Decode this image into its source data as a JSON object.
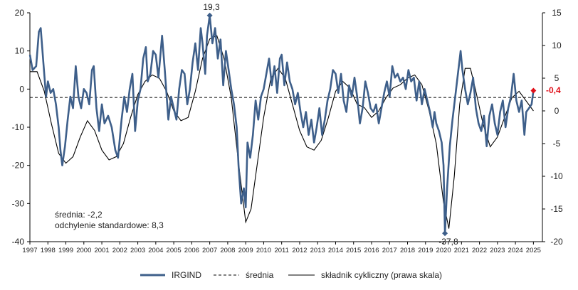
{
  "chart_data": {
    "type": "line",
    "x_start_year": 1997,
    "x_end_year": 2025,
    "x_tick_labels": [
      "1997",
      "1998",
      "1999",
      "2000",
      "2001",
      "2002",
      "2003",
      "2004",
      "2005",
      "2006",
      "2007",
      "2008",
      "2009",
      "2010",
      "2011",
      "2012",
      "2013",
      "2014",
      "2015",
      "2016",
      "2017",
      "2018",
      "2019",
      "2020",
      "2021",
      "2022",
      "2023",
      "2024",
      "2025"
    ],
    "left_axis": {
      "min": -40,
      "max": 20,
      "ticks": [
        20,
        10,
        0,
        -10,
        -20,
        -30,
        -40
      ],
      "tick_labels": [
        "20",
        "10",
        "0",
        "-10",
        "-20",
        "-30",
        "-40"
      ]
    },
    "right_axis": {
      "min": -20,
      "max": 15,
      "ticks": [
        15,
        10,
        5,
        0,
        -5,
        -10,
        -15,
        -20
      ],
      "tick_labels": [
        "15",
        "10",
        "5",
        "0",
        "-5",
        "-10",
        "-15",
        "-20"
      ]
    },
    "colors": {
      "irgind": "#3E5F8A",
      "mean": "#000000",
      "cycle": "#000000",
      "last_marker": "#E0101A"
    },
    "series": [
      {
        "name": "IRGIND",
        "axis": "left",
        "points": [
          [
            1997.0,
            9
          ],
          [
            1997.15,
            5
          ],
          [
            1997.35,
            6
          ],
          [
            1997.5,
            15
          ],
          [
            1997.6,
            16
          ],
          [
            1997.75,
            7
          ],
          [
            1997.9,
            -2
          ],
          [
            1998.0,
            2
          ],
          [
            1998.15,
            -1
          ],
          [
            1998.3,
            0
          ],
          [
            1998.45,
            -4
          ],
          [
            1998.6,
            -10
          ],
          [
            1998.7,
            -16
          ],
          [
            1998.8,
            -20
          ],
          [
            1998.95,
            -15
          ],
          [
            1999.1,
            -8
          ],
          [
            1999.25,
            -2
          ],
          [
            1999.4,
            -5
          ],
          [
            1999.55,
            6
          ],
          [
            1999.7,
            -2
          ],
          [
            1999.85,
            -5
          ],
          [
            2000.0,
            0
          ],
          [
            2000.15,
            -1
          ],
          [
            2000.3,
            -4
          ],
          [
            2000.45,
            5
          ],
          [
            2000.55,
            6
          ],
          [
            2000.7,
            -5
          ],
          [
            2000.85,
            -11
          ],
          [
            2001.0,
            -4
          ],
          [
            2001.15,
            -9
          ],
          [
            2001.35,
            -7
          ],
          [
            2001.55,
            -10
          ],
          [
            2001.75,
            -16
          ],
          [
            2001.9,
            -18
          ],
          [
            2002.1,
            -8
          ],
          [
            2002.25,
            -2
          ],
          [
            2002.4,
            -6
          ],
          [
            2002.55,
            0
          ],
          [
            2002.7,
            4
          ],
          [
            2002.85,
            -11
          ],
          [
            2003.0,
            -3
          ],
          [
            2003.15,
            0
          ],
          [
            2003.3,
            8
          ],
          [
            2003.45,
            11
          ],
          [
            2003.55,
            2
          ],
          [
            2003.7,
            4
          ],
          [
            2003.85,
            10
          ],
          [
            2004.0,
            9
          ],
          [
            2004.15,
            3
          ],
          [
            2004.35,
            14
          ],
          [
            2004.5,
            5
          ],
          [
            2004.7,
            -8
          ],
          [
            2004.85,
            -2
          ],
          [
            2005.0,
            -5
          ],
          [
            2005.15,
            -8
          ],
          [
            2005.3,
            0
          ],
          [
            2005.45,
            5
          ],
          [
            2005.6,
            4
          ],
          [
            2005.75,
            -4
          ],
          [
            2005.9,
            0
          ],
          [
            2006.05,
            7
          ],
          [
            2006.2,
            12
          ],
          [
            2006.35,
            5
          ],
          [
            2006.5,
            16
          ],
          [
            2006.6,
            12
          ],
          [
            2006.75,
            4
          ],
          [
            2006.85,
            14
          ],
          [
            2007.0,
            19.3
          ],
          [
            2007.15,
            12
          ],
          [
            2007.3,
            16
          ],
          [
            2007.45,
            8
          ],
          [
            2007.6,
            13
          ],
          [
            2007.75,
            1
          ],
          [
            2007.9,
            10
          ],
          [
            2008.05,
            5
          ],
          [
            2008.2,
            0
          ],
          [
            2008.35,
            -4
          ],
          [
            2008.5,
            -10
          ],
          [
            2008.6,
            -20
          ],
          [
            2008.75,
            -30
          ],
          [
            2008.9,
            -26
          ],
          [
            2009.0,
            -31
          ],
          [
            2009.1,
            -14
          ],
          [
            2009.25,
            -18
          ],
          [
            2009.4,
            -12
          ],
          [
            2009.55,
            -3
          ],
          [
            2009.7,
            -8
          ],
          [
            2009.85,
            -2
          ],
          [
            2010.0,
            0
          ],
          [
            2010.15,
            4
          ],
          [
            2010.3,
            8
          ],
          [
            2010.45,
            1
          ],
          [
            2010.6,
            6
          ],
          [
            2010.75,
            -1
          ],
          [
            2010.9,
            8
          ],
          [
            2011.0,
            9
          ],
          [
            2011.15,
            1
          ],
          [
            2011.3,
            7
          ],
          [
            2011.45,
            2
          ],
          [
            2011.6,
            0
          ],
          [
            2011.75,
            -4
          ],
          [
            2011.9,
            -1
          ],
          [
            2012.05,
            -6
          ],
          [
            2012.2,
            -10
          ],
          [
            2012.35,
            -6
          ],
          [
            2012.5,
            -12
          ],
          [
            2012.65,
            -8
          ],
          [
            2012.8,
            -14
          ],
          [
            2012.95,
            -10
          ],
          [
            2013.1,
            -5
          ],
          [
            2013.25,
            -12
          ],
          [
            2013.4,
            -8
          ],
          [
            2013.55,
            -3
          ],
          [
            2013.7,
            0
          ],
          [
            2013.85,
            5
          ],
          [
            2014.0,
            4
          ],
          [
            2014.15,
            -1
          ],
          [
            2014.3,
            4
          ],
          [
            2014.45,
            -3
          ],
          [
            2014.6,
            -6
          ],
          [
            2014.75,
            1
          ],
          [
            2014.9,
            -2
          ],
          [
            2015.05,
            3
          ],
          [
            2015.2,
            -2
          ],
          [
            2015.35,
            -9
          ],
          [
            2015.5,
            -5
          ],
          [
            2015.65,
            2
          ],
          [
            2015.8,
            -1
          ],
          [
            2015.95,
            -5
          ],
          [
            2016.1,
            -6
          ],
          [
            2016.25,
            -4
          ],
          [
            2016.4,
            -9
          ],
          [
            2016.55,
            -5
          ],
          [
            2016.7,
            -1
          ],
          [
            2016.85,
            2
          ],
          [
            2017.0,
            -2
          ],
          [
            2017.15,
            6
          ],
          [
            2017.3,
            3
          ],
          [
            2017.45,
            4
          ],
          [
            2017.6,
            2
          ],
          [
            2017.75,
            3
          ],
          [
            2017.9,
            0
          ],
          [
            2018.05,
            5
          ],
          [
            2018.2,
            2
          ],
          [
            2018.35,
            3
          ],
          [
            2018.5,
            -3
          ],
          [
            2018.65,
            2
          ],
          [
            2018.8,
            -4
          ],
          [
            2018.95,
            0
          ],
          [
            2019.1,
            -3
          ],
          [
            2019.25,
            -6
          ],
          [
            2019.4,
            -10
          ],
          [
            2019.5,
            -6
          ],
          [
            2019.6,
            -9
          ],
          [
            2019.75,
            -11
          ],
          [
            2019.9,
            -14
          ],
          [
            2020.0,
            -20
          ],
          [
            2020.08,
            -37.8
          ],
          [
            2020.2,
            -26
          ],
          [
            2020.35,
            -15
          ],
          [
            2020.5,
            -8
          ],
          [
            2020.65,
            -2
          ],
          [
            2020.8,
            4
          ],
          [
            2020.95,
            10
          ],
          [
            2021.05,
            5
          ],
          [
            2021.2,
            0
          ],
          [
            2021.35,
            -4
          ],
          [
            2021.5,
            -1
          ],
          [
            2021.65,
            3
          ],
          [
            2021.8,
            -5
          ],
          [
            2021.95,
            -9
          ],
          [
            2022.1,
            -11
          ],
          [
            2022.25,
            -7
          ],
          [
            2022.4,
            -15
          ],
          [
            2022.55,
            -7
          ],
          [
            2022.7,
            -4
          ],
          [
            2022.85,
            -9
          ],
          [
            2023.0,
            -12
          ],
          [
            2023.15,
            -6
          ],
          [
            2023.3,
            -3
          ],
          [
            2023.45,
            -10
          ],
          [
            2023.6,
            -5
          ],
          [
            2023.75,
            -2
          ],
          [
            2023.9,
            4
          ],
          [
            2024.05,
            -3
          ],
          [
            2024.2,
            -6
          ],
          [
            2024.35,
            -3
          ],
          [
            2024.5,
            -12
          ],
          [
            2024.6,
            -6
          ],
          [
            2024.75,
            -5
          ],
          [
            2024.9,
            -4
          ],
          [
            2025.0,
            -0.4
          ]
        ]
      },
      {
        "name": "średnia",
        "axis": "left",
        "value": -2.2
      },
      {
        "name": "składnik cykliczny (prawa skala)",
        "axis": "right",
        "points": [
          [
            1997.0,
            6
          ],
          [
            1997.4,
            6
          ],
          [
            1997.8,
            3
          ],
          [
            1998.2,
            -2
          ],
          [
            1998.6,
            -6.5
          ],
          [
            1999.0,
            -8
          ],
          [
            1999.4,
            -7
          ],
          [
            1999.8,
            -4
          ],
          [
            2000.2,
            -1.5
          ],
          [
            2000.6,
            -3
          ],
          [
            2001.0,
            -6
          ],
          [
            2001.4,
            -7.5
          ],
          [
            2001.8,
            -7
          ],
          [
            2002.2,
            -5
          ],
          [
            2002.6,
            -1
          ],
          [
            2003.0,
            2.5
          ],
          [
            2003.4,
            4.5
          ],
          [
            2003.8,
            5.5
          ],
          [
            2004.2,
            5
          ],
          [
            2004.6,
            3
          ],
          [
            2005.0,
            0
          ],
          [
            2005.4,
            -1.5
          ],
          [
            2005.8,
            -1
          ],
          [
            2006.2,
            3
          ],
          [
            2006.6,
            8
          ],
          [
            2007.0,
            11
          ],
          [
            2007.4,
            11.5
          ],
          [
            2007.8,
            8
          ],
          [
            2008.2,
            2
          ],
          [
            2008.6,
            -8
          ],
          [
            2009.0,
            -17
          ],
          [
            2009.3,
            -15
          ],
          [
            2009.6,
            -9
          ],
          [
            2010.0,
            -1
          ],
          [
            2010.4,
            5
          ],
          [
            2010.8,
            6.5
          ],
          [
            2011.2,
            5
          ],
          [
            2011.6,
            1
          ],
          [
            2012.0,
            -3
          ],
          [
            2012.4,
            -5.5
          ],
          [
            2012.8,
            -6
          ],
          [
            2013.2,
            -4.5
          ],
          [
            2013.6,
            -1
          ],
          [
            2014.0,
            3
          ],
          [
            2014.4,
            4.5
          ],
          [
            2014.8,
            3.5
          ],
          [
            2015.2,
            1
          ],
          [
            2015.6,
            0.5
          ],
          [
            2016.0,
            -1
          ],
          [
            2016.4,
            0
          ],
          [
            2016.8,
            2
          ],
          [
            2017.2,
            3.5
          ],
          [
            2017.6,
            4
          ],
          [
            2018.0,
            5
          ],
          [
            2018.4,
            5.5
          ],
          [
            2018.8,
            4
          ],
          [
            2019.2,
            0
          ],
          [
            2019.6,
            -5
          ],
          [
            2020.0,
            -14
          ],
          [
            2020.3,
            -18
          ],
          [
            2020.6,
            -10
          ],
          [
            2020.9,
            1
          ],
          [
            2021.2,
            6.5
          ],
          [
            2021.5,
            6.5
          ],
          [
            2021.8,
            3
          ],
          [
            2022.2,
            -2
          ],
          [
            2022.6,
            -5.5
          ],
          [
            2023.0,
            -4
          ],
          [
            2023.4,
            -1
          ],
          [
            2023.8,
            2
          ],
          [
            2024.2,
            3
          ],
          [
            2024.6,
            1.5
          ],
          [
            2025.0,
            0
          ]
        ]
      }
    ],
    "annotations": {
      "max_label": "19,3",
      "min_label": "-37,8",
      "last_label": "-0,4",
      "stats_line1": "średnia: -2,2",
      "stats_line2": "odchylenie standardowe: 8,3"
    },
    "legend": {
      "position": "bottom",
      "items": [
        "IRGIND",
        "średnia",
        "składnik cykliczny (prawa skala)"
      ]
    },
    "grid": false
  }
}
